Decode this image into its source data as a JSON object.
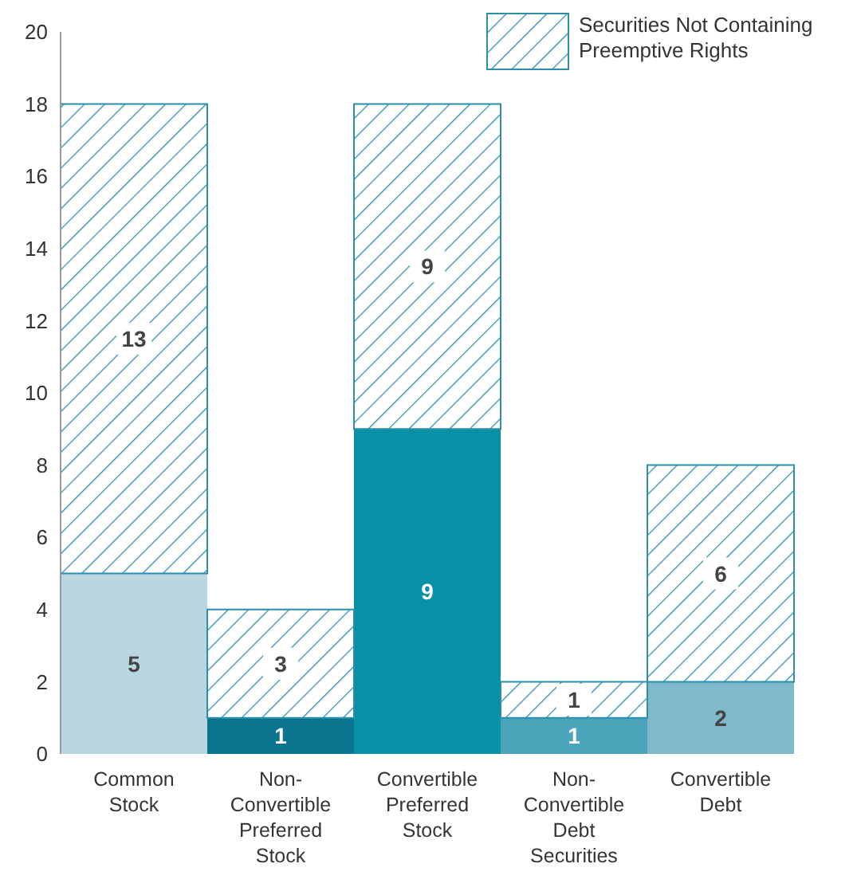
{
  "chart_data": {
    "type": "bar",
    "stacked": true,
    "categories": [
      "Common Stock",
      "Non-Convertible Preferred Stock",
      "Convertible Preferred Stock",
      "Non-Convertible Debt Securities",
      "Convertible Debt"
    ],
    "series": [
      {
        "colors": [
          "#b9d7e1",
          "#0b7590",
          "#0890a6",
          "#4aa5ba",
          "#80b9ca"
        ],
        "values": [
          5,
          1,
          9,
          1,
          2
        ]
      },
      {
        "name": "Securities Not Containing Preemptive Rights",
        "color": "#2b8fac",
        "values": [
          13,
          3,
          9,
          1,
          6
        ]
      }
    ],
    "ylim": [
      0,
      20
    ],
    "yticks": [
      0,
      2,
      4,
      6,
      8,
      10,
      12,
      14,
      16,
      18,
      20
    ],
    "data_labels": true,
    "legend": "top right",
    "grid": false
  }
}
